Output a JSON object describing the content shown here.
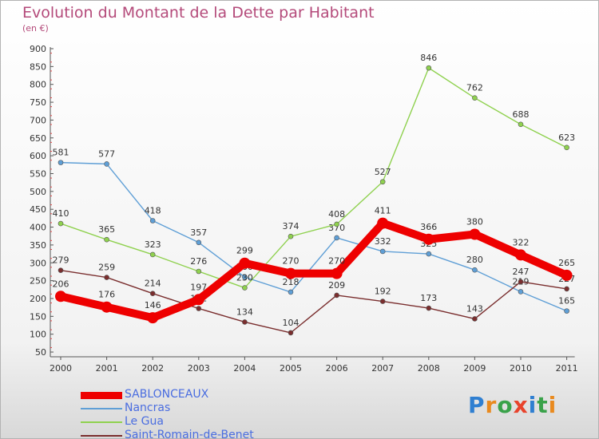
{
  "header": {
    "title": "Evolution du Montant de la Dette par Habitant",
    "subtitle": "(en €)"
  },
  "brand": {
    "letters": [
      "P",
      "r",
      "o",
      "x",
      "i",
      "t",
      "i"
    ],
    "colors": [
      "#2f7fd1",
      "#e98a1f",
      "#3aa24a",
      "#e8432c",
      "#2f7fd1",
      "#3aa24a",
      "#e98a1f"
    ]
  },
  "chart_data": {
    "type": "line",
    "title": "Evolution du Montant de la Dette par Habitant",
    "subtitle": "(en €)",
    "xlabel": "",
    "ylabel": "",
    "x": [
      "2000",
      "2001",
      "2002",
      "2003",
      "2004",
      "2005",
      "2006",
      "2007",
      "2008",
      "2009",
      "2010",
      "2011"
    ],
    "ylim": [
      50,
      900
    ],
    "yticks": [
      50,
      100,
      150,
      200,
      250,
      300,
      350,
      400,
      450,
      500,
      550,
      600,
      650,
      700,
      750,
      800,
      850,
      900
    ],
    "grid": false,
    "legend_position": "bottom-left",
    "series": [
      {
        "name": "SABLONCEAUX",
        "color": "#ee0000",
        "values": [
          206,
          176,
          146,
          197,
          299,
          270,
          270,
          411,
          366,
          380,
          322,
          265
        ]
      },
      {
        "name": "Nancras",
        "color": "#5f9fd6",
        "values": [
          581,
          577,
          418,
          357,
          260,
          218,
          370,
          332,
          325,
          280,
          219,
          165
        ]
      },
      {
        "name": "Le Gua",
        "color": "#8fd14f",
        "values": [
          410,
          365,
          323,
          276,
          230,
          374,
          408,
          527,
          846,
          762,
          688,
          623
        ]
      },
      {
        "name": "Saint-Romain-de-Benet",
        "color": "#7a2e2e",
        "values": [
          279,
          259,
          214,
          172,
          134,
          104,
          209,
          192,
          173,
          143,
          247,
          227
        ]
      }
    ]
  }
}
